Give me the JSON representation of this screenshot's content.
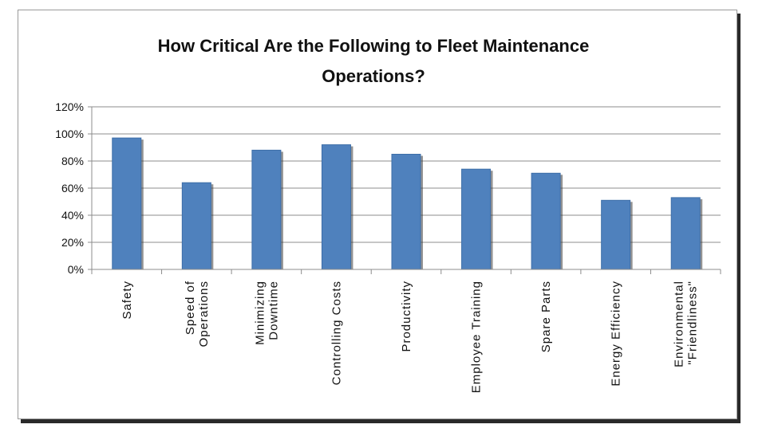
{
  "chart_data": {
    "type": "bar",
    "title_lines": [
      "How Critical Are the Following to Fleet Maintenance",
      "Operations?"
    ],
    "categories": [
      [
        "Safety"
      ],
      [
        "Speed of",
        "Operations"
      ],
      [
        "Minimizing",
        "Downtime"
      ],
      [
        "Controlling Costs"
      ],
      [
        "Productivity"
      ],
      [
        "Employee Training"
      ],
      [
        "Spare Parts"
      ],
      [
        "Energy Efficiency"
      ],
      [
        "Environmental",
        "\"Friendliness\""
      ]
    ],
    "values": [
      97,
      64,
      88,
      92,
      85,
      74,
      71,
      51,
      53
    ],
    "ylim": [
      0,
      120
    ],
    "yticks": [
      "0%",
      "20%",
      "40%",
      "60%",
      "80%",
      "100%",
      "120%"
    ],
    "ytick_values": [
      0,
      20,
      40,
      60,
      80,
      100,
      120
    ],
    "bar_color": "#4f81bd",
    "gridlines": true,
    "xlabel": "",
    "ylabel": ""
  }
}
